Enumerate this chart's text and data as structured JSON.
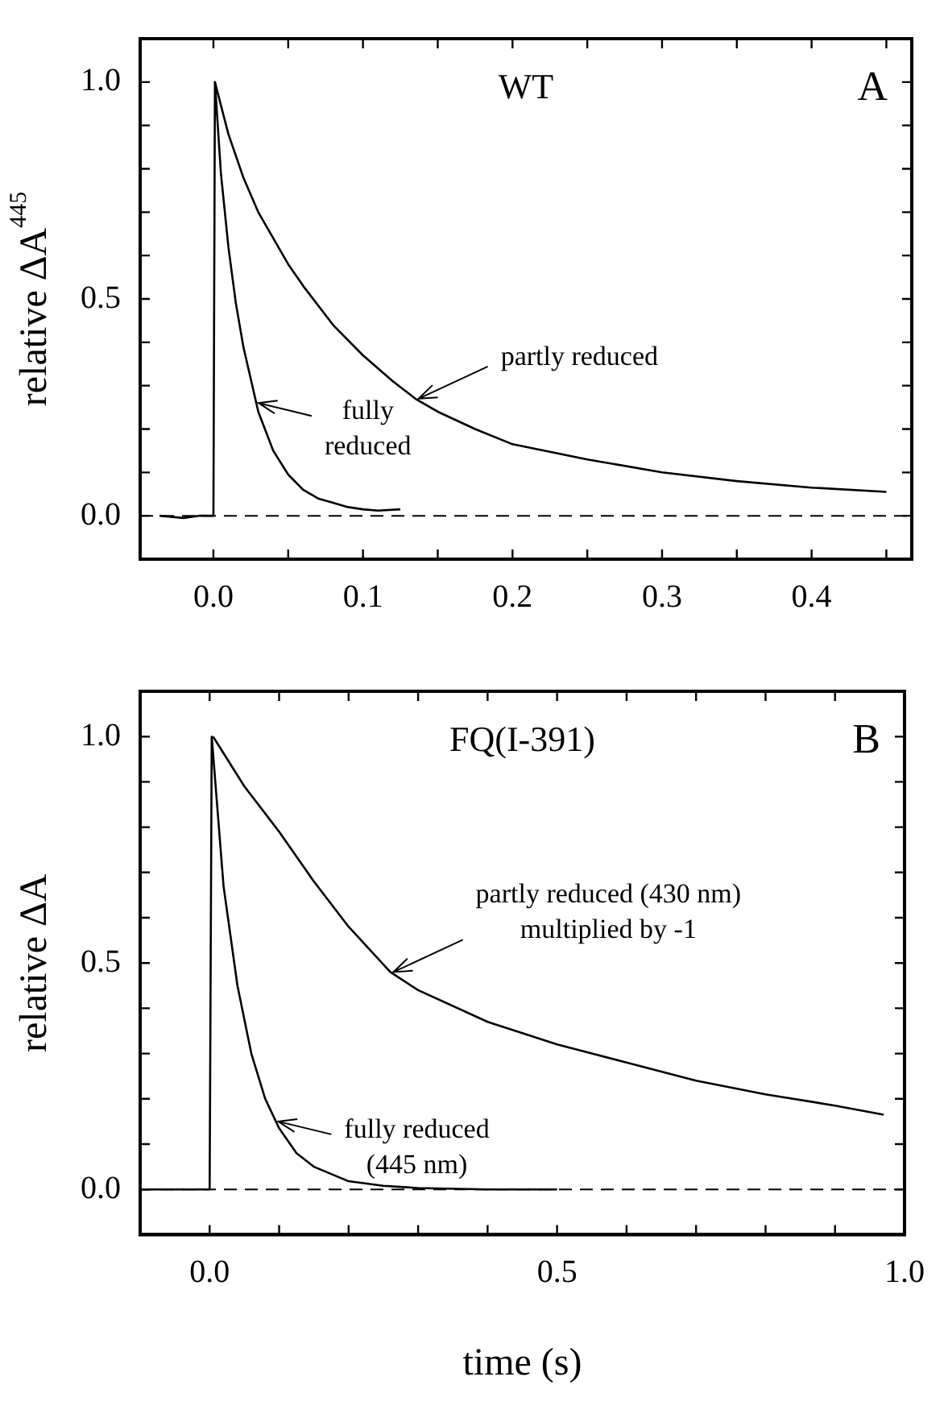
{
  "chart_data": [
    {
      "type": "line",
      "title": "WT",
      "ylabel": "relative ΔA$^{445}$",
      "marker": "none",
      "line_style": "solid",
      "grid": false,
      "legend": false,
      "xlim": [
        -0.049,
        0.467
      ],
      "ylim": [
        -0.1,
        1.1
      ],
      "xticks": [
        {
          "value": 0,
          "label": "0.0"
        },
        {
          "value": 0.05,
          "label": null
        },
        {
          "value": 0.1,
          "label": "0.1"
        },
        {
          "value": 0.15,
          "label": null
        },
        {
          "value": 0.2,
          "label": "0.2"
        },
        {
          "value": 0.25,
          "label": null
        },
        {
          "value": 0.3,
          "label": "0.3"
        },
        {
          "value": 0.35,
          "label": null
        },
        {
          "value": 0.4,
          "label": "0.4"
        },
        {
          "value": 0.45,
          "label": null
        }
      ],
      "yticks": [
        {
          "value": 0,
          "label": "0.0"
        },
        {
          "value": 0.1,
          "label": null
        },
        {
          "value": 0.2,
          "label": null
        },
        {
          "value": 0.3,
          "label": null
        },
        {
          "value": 0.4,
          "label": null
        },
        {
          "value": 0.5,
          "label": "0.5"
        },
        {
          "value": 0.6,
          "label": null
        },
        {
          "value": 0.7,
          "label": null
        },
        {
          "value": 0.8,
          "label": null
        },
        {
          "value": 0.9,
          "label": null
        },
        {
          "value": 1,
          "label": "1.0"
        }
      ],
      "series": [
        {
          "color": "#000000",
          "x": [
            -0.036,
            -0.02,
            -0.01,
            0,
            0.001,
            0.005,
            0.01,
            0.015,
            0.02,
            0.03,
            0.04,
            0.05,
            0.06,
            0.07,
            0.08,
            0.09,
            0.1,
            0.11,
            0.125
          ],
          "values": [
            0,
            -0.005,
            0,
            0,
            1,
            0.79,
            0.62,
            0.49,
            0.39,
            0.24,
            0.15,
            0.095,
            0.06,
            0.04,
            0.03,
            0.02,
            0.015,
            0.012,
            0.015
          ]
        },
        {
          "color": "#000000",
          "x": [
            0.001,
            0.01,
            0.02,
            0.03,
            0.04,
            0.05,
            0.06,
            0.08,
            0.1,
            0.12,
            0.135,
            0.15,
            0.175,
            0.2,
            0.25,
            0.3,
            0.35,
            0.4,
            0.45
          ],
          "values": [
            1,
            0.88,
            0.78,
            0.7,
            0.64,
            0.58,
            0.53,
            0.44,
            0.37,
            0.31,
            0.27,
            0.24,
            0.2,
            0.165,
            0.13,
            0.1,
            0.08,
            0.065,
            0.055
          ]
        }
      ],
      "ref_lines": [
        {
          "axis": "y",
          "value": 0,
          "line_style": "dashed",
          "color": "#000000"
        }
      ],
      "annotations": [
        "A",
        {
          "text": "partly reduced",
          "x": 0.135,
          "y": 0.27
        },
        {
          "text": "fully\nreduced",
          "x": 0.028,
          "y": 0.26
        }
      ]
    },
    {
      "type": "line",
      "title": "FQ(I-391)",
      "ylabel": "relative ΔA",
      "xlabel": "time (s)",
      "marker": "none",
      "line_style": "solid",
      "grid": false,
      "legend": false,
      "xlim": [
        -0.1,
        1.0
      ],
      "ylim": [
        -0.1,
        1.1
      ],
      "xticks": [
        {
          "value": 0,
          "label": "0.0"
        },
        {
          "value": 0.1,
          "label": null
        },
        {
          "value": 0.2,
          "label": null
        },
        {
          "value": 0.3,
          "label": null
        },
        {
          "value": 0.4,
          "label": null
        },
        {
          "value": 0.5,
          "label": "0.5"
        },
        {
          "value": 0.6,
          "label": null
        },
        {
          "value": 0.7,
          "label": null
        },
        {
          "value": 0.8,
          "label": null
        },
        {
          "value": 0.9,
          "label": null
        },
        {
          "value": 1,
          "label": "1.0"
        }
      ],
      "yticks": [
        {
          "value": 0,
          "label": "0.0"
        },
        {
          "value": 0.1,
          "label": null
        },
        {
          "value": 0.2,
          "label": null
        },
        {
          "value": 0.3,
          "label": null
        },
        {
          "value": 0.4,
          "label": null
        },
        {
          "value": 0.5,
          "label": "0.5"
        },
        {
          "value": 0.6,
          "label": null
        },
        {
          "value": 0.7,
          "label": null
        },
        {
          "value": 0.8,
          "label": null
        },
        {
          "value": 0.9,
          "label": null
        },
        {
          "value": 1,
          "label": "1.0"
        }
      ],
      "series": [
        {
          "color": "#000000",
          "x": [
            -0.1,
            -0.05,
            -0.003,
            0,
            0.003,
            0.02,
            0.04,
            0.06,
            0.08,
            0.1,
            0.125,
            0.15,
            0.2,
            0.25,
            0.3,
            0.4,
            0.5
          ],
          "values": [
            0,
            0,
            0,
            0,
            1,
            0.67,
            0.45,
            0.3,
            0.2,
            0.135,
            0.08,
            0.05,
            0.018,
            0.008,
            0.003,
            0,
            0
          ]
        },
        {
          "color": "#000000",
          "x": [
            0.005,
            0.05,
            0.1,
            0.15,
            0.2,
            0.26,
            0.3,
            0.4,
            0.5,
            0.6,
            0.7,
            0.8,
            0.9,
            0.97
          ],
          "values": [
            1,
            0.89,
            0.79,
            0.68,
            0.58,
            0.48,
            0.44,
            0.37,
            0.32,
            0.28,
            0.24,
            0.21,
            0.185,
            0.165
          ]
        }
      ],
      "ref_lines": [
        {
          "axis": "y",
          "value": 0,
          "line_style": "dashed",
          "color": "#000000"
        }
      ],
      "annotations": [
        "B",
        {
          "text": "partly reduced (430 nm)\nmultiplied by -1",
          "x": 0.26,
          "y": 0.48
        },
        {
          "text": "fully reduced\n(445 nm)",
          "x": 0.094,
          "y": 0.15
        }
      ]
    }
  ]
}
